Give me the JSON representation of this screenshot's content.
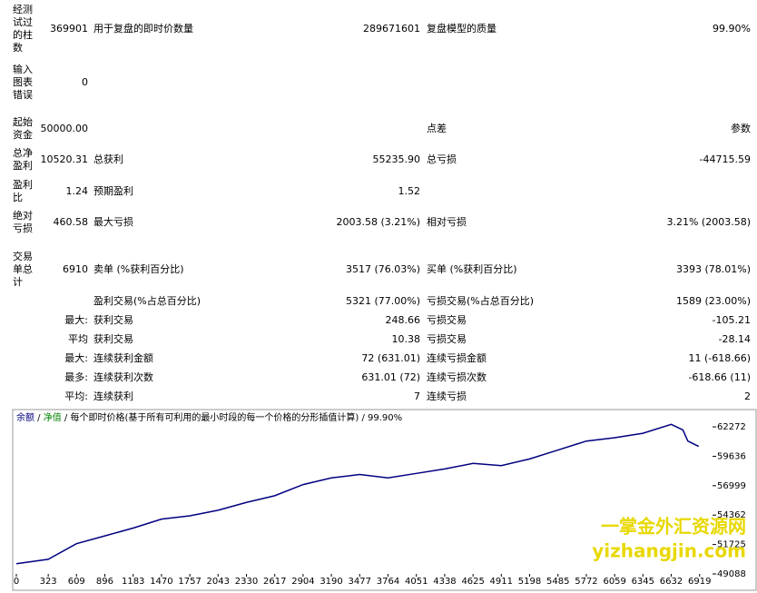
{
  "table": {
    "rows": [
      [
        "经测试过的柱数",
        "369901",
        "用于复盘的即时价数量",
        "289671601",
        "复盘模型的质量",
        "99.90%"
      ],
      [
        "输入图表错误",
        "0",
        null,
        null,
        null,
        null
      ],
      [
        "起始资金",
        "50000.00",
        null,
        null,
        "点差",
        "参数"
      ],
      [
        "总净盈利",
        "10520.31",
        "总获利",
        "55235.90",
        "总亏损",
        "-44715.59"
      ],
      [
        "盈利比",
        "1.24",
        "预期盈利",
        "1.52",
        null,
        null
      ],
      [
        "绝对亏损",
        "460.58",
        "最大亏损",
        "2003.58 (3.21%)",
        "相对亏损",
        "3.21% (2003.58)"
      ],
      [
        "交易单总计",
        "6910",
        "卖单 (%获利百分比)",
        "3517 (76.03%)",
        "买单 (%获利百分比)",
        "3393 (78.01%)"
      ],
      [
        null,
        null,
        "盈利交易(%占总百分比)",
        "5321 (77.00%)",
        "亏损交易(%占总百分比)",
        "1589 (23.00%)"
      ],
      [
        null,
        "最大:",
        "获利交易",
        "248.66",
        "亏损交易",
        "-105.21"
      ],
      [
        null,
        "平均",
        "获利交易",
        "10.38",
        "亏损交易",
        "-28.14"
      ],
      [
        null,
        "最大:",
        "连续获利金额",
        "72 (631.01)",
        "连续亏损金额",
        "11 (-618.66)"
      ],
      [
        null,
        "最多:",
        "连续获利次数",
        "631.01 (72)",
        "连续亏损次数",
        "-618.66 (11)"
      ],
      [
        null,
        "平均:",
        "连续获利",
        "7",
        "连续亏损",
        "2"
      ]
    ]
  },
  "chart_data": {
    "type": "line",
    "separator": " / ",
    "subtitle": "每个即时价格(基于所有可利用的最小时段的每一个价格的分形插值计算)",
    "quality": "99.90%",
    "series": [
      {
        "name": "余额",
        "color": "#000080",
        "x": [
          0,
          323,
          609,
          896,
          1183,
          1470,
          1757,
          2043,
          2330,
          2617,
          2904,
          3190,
          3477,
          3764,
          4051,
          4338,
          4625,
          4911,
          5198,
          5485,
          5772,
          6059,
          6345,
          6632,
          6750,
          6800,
          6910
        ],
        "values": [
          50000,
          50400,
          51800,
          52500,
          53200,
          54000,
          54300,
          54800,
          55500,
          56100,
          57100,
          57700,
          58000,
          57700,
          58100,
          58500,
          59000,
          58800,
          59400,
          60200,
          61000,
          61300,
          61700,
          62500,
          62000,
          61000,
          60520
        ]
      },
      {
        "name": "净值",
        "color": "#008000"
      }
    ],
    "xlim": [
      0,
      7050
    ],
    "ylim": [
      49088,
      63500
    ],
    "xticks": [
      0,
      323,
      609,
      896,
      1183,
      1470,
      1757,
      2043,
      2330,
      2617,
      2904,
      3190,
      3477,
      3764,
      4051,
      4338,
      4625,
      4911,
      5198,
      5485,
      5772,
      6059,
      6345,
      6632,
      6919
    ],
    "yticks": [
      49088,
      51725,
      54362,
      56999,
      59636,
      62272
    ],
    "watermark": [
      "一掌金外汇资源网",
      "yizhangjin.com"
    ]
  }
}
